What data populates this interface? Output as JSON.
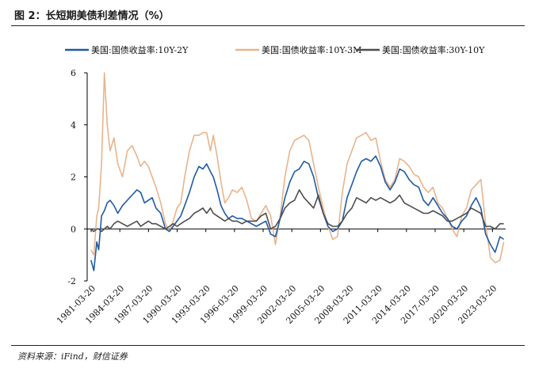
{
  "figure": {
    "title": "图 2：长短期美债利差情况（%）",
    "source": "资料来源：iFind，财信证券"
  },
  "chart_data": {
    "type": "line",
    "title": "",
    "xlabel": "",
    "ylabel": "",
    "ylim": [
      -2,
      6
    ],
    "yticks": [
      "-2",
      "0",
      "2",
      "4",
      "6"
    ],
    "xticks": [
      "1981-03-20",
      "1984-03-20",
      "1987-03-20",
      "1990-03-20",
      "1993-03-20",
      "1996-03-20",
      "1999-03-20",
      "2002-03-20",
      "2005-03-20",
      "2008-03-20",
      "2011-03-20",
      "2014-03-20",
      "2017-03-20",
      "2020-03-20",
      "2023-03-20"
    ],
    "xlim": [
      1980.8,
      2024.6
    ],
    "legend_position": "top",
    "grid": false,
    "series": [
      {
        "name": "美国:国债收益率:10Y-2Y",
        "color": "#1f5aa6",
        "x": [
          1981.2,
          1981.5,
          1981.8,
          1982.0,
          1982.3,
          1982.6,
          1982.9,
          1983.2,
          1983.6,
          1984.0,
          1984.5,
          1985.0,
          1985.5,
          1986.0,
          1986.4,
          1986.8,
          1987.2,
          1987.6,
          1988.0,
          1988.5,
          1989.0,
          1989.4,
          1989.8,
          1990.2,
          1990.6,
          1991.0,
          1991.5,
          1992.0,
          1992.5,
          1992.9,
          1993.3,
          1993.7,
          1994.0,
          1994.4,
          1994.8,
          1995.2,
          1995.6,
          1996.0,
          1996.5,
          1997.0,
          1997.5,
          1998.0,
          1998.5,
          1999.0,
          1999.5,
          2000.0,
          2000.5,
          2001.0,
          2001.5,
          2002.0,
          2002.5,
          2003.0,
          2003.5,
          2004.0,
          2004.5,
          2005.0,
          2005.5,
          2006.0,
          2006.5,
          2007.0,
          2007.5,
          2008.0,
          2008.5,
          2009.0,
          2009.5,
          2010.0,
          2010.5,
          2011.0,
          2011.5,
          2012.0,
          2012.5,
          2013.0,
          2013.5,
          2014.0,
          2014.5,
          2015.0,
          2015.5,
          2016.0,
          2016.5,
          2017.0,
          2017.5,
          2018.0,
          2018.5,
          2019.0,
          2019.5,
          2020.0,
          2020.5,
          2021.0,
          2021.5,
          2022.0,
          2022.5,
          2023.0,
          2023.5,
          2024.0,
          2024.4
        ],
        "y": [
          -1.2,
          -1.6,
          -0.5,
          -0.8,
          0.5,
          0.7,
          1.0,
          1.1,
          0.9,
          0.6,
          0.9,
          1.1,
          1.3,
          1.5,
          1.4,
          1.0,
          1.1,
          1.2,
          0.8,
          0.6,
          0.0,
          -0.1,
          0.1,
          0.3,
          0.5,
          0.9,
          1.4,
          2.0,
          2.4,
          2.3,
          2.5,
          2.2,
          2.0,
          1.5,
          0.9,
          0.6,
          0.4,
          0.5,
          0.4,
          0.4,
          0.3,
          0.2,
          0.1,
          0.2,
          0.3,
          -0.2,
          -0.3,
          0.4,
          1.2,
          1.8,
          2.2,
          2.3,
          2.6,
          2.5,
          2.0,
          1.2,
          0.6,
          0.1,
          -0.1,
          0.0,
          0.3,
          1.2,
          1.7,
          2.2,
          2.6,
          2.7,
          2.6,
          2.8,
          2.4,
          1.8,
          1.5,
          1.8,
          2.3,
          2.2,
          1.9,
          1.7,
          1.6,
          1.1,
          0.9,
          1.2,
          0.9,
          0.6,
          0.4,
          0.1,
          0.0,
          0.3,
          0.5,
          0.9,
          1.2,
          0.8,
          -0.2,
          -0.6,
          -0.9,
          -0.3,
          -0.4
        ]
      },
      {
        "name": "美国:国债收益率:10Y-3M",
        "color": "#e8b48c",
        "x": [
          1981.2,
          1981.5,
          1981.8,
          1982.0,
          1982.3,
          1982.6,
          1982.9,
          1983.2,
          1983.6,
          1984.0,
          1984.5,
          1985.0,
          1985.5,
          1986.0,
          1986.4,
          1986.8,
          1987.2,
          1987.6,
          1988.0,
          1988.5,
          1989.0,
          1989.4,
          1989.8,
          1990.2,
          1990.6,
          1991.0,
          1991.5,
          1992.0,
          1992.5,
          1992.9,
          1993.3,
          1993.7,
          1994.0,
          1994.4,
          1994.8,
          1995.2,
          1995.6,
          1996.0,
          1996.5,
          1997.0,
          1997.5,
          1998.0,
          1998.5,
          1999.0,
          1999.5,
          2000.0,
          2000.5,
          2001.0,
          2001.5,
          2002.0,
          2002.5,
          2003.0,
          2003.5,
          2004.0,
          2004.5,
          2005.0,
          2005.5,
          2006.0,
          2006.5,
          2007.0,
          2007.5,
          2008.0,
          2008.5,
          2009.0,
          2009.5,
          2010.0,
          2010.5,
          2011.0,
          2011.5,
          2012.0,
          2012.5,
          2013.0,
          2013.5,
          2014.0,
          2014.5,
          2015.0,
          2015.5,
          2016.0,
          2016.5,
          2017.0,
          2017.5,
          2018.0,
          2018.5,
          2019.0,
          2019.5,
          2020.0,
          2020.5,
          2021.0,
          2021.5,
          2022.0,
          2022.5,
          2023.0,
          2023.5,
          2024.0,
          2024.4
        ],
        "y": [
          -0.8,
          -1.0,
          0.5,
          0.8,
          2.5,
          6.0,
          4.0,
          3.0,
          3.5,
          2.5,
          2.0,
          3.0,
          3.2,
          2.8,
          2.4,
          2.6,
          2.4,
          2.0,
          1.6,
          1.0,
          0.2,
          -0.1,
          0.3,
          0.8,
          1.0,
          2.0,
          3.0,
          3.6,
          3.6,
          3.7,
          3.7,
          3.0,
          3.6,
          2.8,
          1.8,
          1.0,
          1.2,
          1.5,
          1.4,
          1.6,
          1.1,
          0.4,
          0.3,
          0.6,
          0.9,
          0.5,
          -0.6,
          0.5,
          2.0,
          3.0,
          3.4,
          3.5,
          3.6,
          3.4,
          2.5,
          1.6,
          0.8,
          0.1,
          -0.4,
          -0.3,
          1.4,
          2.5,
          3.0,
          3.5,
          3.6,
          3.7,
          3.4,
          3.5,
          2.6,
          1.9,
          1.6,
          1.9,
          2.7,
          2.6,
          2.4,
          2.1,
          2.0,
          1.6,
          1.4,
          1.6,
          1.0,
          0.8,
          0.4,
          0.0,
          -0.3,
          0.5,
          0.8,
          1.5,
          1.7,
          1.9,
          0.2,
          -1.1,
          -1.3,
          -1.2,
          -0.5
        ]
      },
      {
        "name": "美国:国债收益率:30Y-10Y",
        "color": "#4d4d4d",
        "x": [
          1981.2,
          1981.5,
          1981.8,
          1982.0,
          1982.3,
          1982.6,
          1982.9,
          1983.2,
          1983.6,
          1984.0,
          1984.5,
          1985.0,
          1985.5,
          1986.0,
          1986.4,
          1986.8,
          1987.2,
          1987.6,
          1988.0,
          1988.5,
          1989.0,
          1989.4,
          1989.8,
          1990.2,
          1990.6,
          1991.0,
          1991.5,
          1992.0,
          1992.5,
          1992.9,
          1993.3,
          1993.7,
          1994.0,
          1994.4,
          1994.8,
          1995.2,
          1995.6,
          1996.0,
          1996.5,
          1997.0,
          1997.5,
          1998.0,
          1998.5,
          1999.0,
          1999.5,
          2000.0,
          2000.5,
          2001.0,
          2001.5,
          2002.0,
          2002.5,
          2003.0,
          2003.5,
          2004.0,
          2004.5,
          2005.0,
          2005.5,
          2006.0,
          2006.5,
          2007.0,
          2007.5,
          2008.0,
          2008.5,
          2009.0,
          2009.5,
          2010.0,
          2010.5,
          2011.0,
          2011.5,
          2012.0,
          2012.5,
          2013.0,
          2013.5,
          2014.0,
          2014.5,
          2015.0,
          2015.5,
          2016.0,
          2016.5,
          2017.0,
          2017.5,
          2018.0,
          2018.5,
          2019.0,
          2019.5,
          2020.0,
          2020.5,
          2021.0,
          2021.5,
          2022.0,
          2022.5,
          2023.0,
          2023.5,
          2024.0,
          2024.4
        ],
        "y": [
          0.0,
          -0.1,
          0.0,
          0.0,
          -0.1,
          0.0,
          0.1,
          0.0,
          0.2,
          0.3,
          0.2,
          0.1,
          0.2,
          0.3,
          0.1,
          0.2,
          0.3,
          0.2,
          0.2,
          0.1,
          0.0,
          0.1,
          0.2,
          0.1,
          0.2,
          0.3,
          0.4,
          0.6,
          0.7,
          0.8,
          0.6,
          0.8,
          0.6,
          0.5,
          0.4,
          0.3,
          0.4,
          0.3,
          0.3,
          0.2,
          0.3,
          0.3,
          0.3,
          0.5,
          0.6,
          0.0,
          0.1,
          0.4,
          0.8,
          1.0,
          1.1,
          1.5,
          1.2,
          1.0,
          0.8,
          1.3,
          0.6,
          0.2,
          0.1,
          0.1,
          0.3,
          0.6,
          0.8,
          1.2,
          1.1,
          1.0,
          1.2,
          1.1,
          1.2,
          1.1,
          1.0,
          1.1,
          1.3,
          1.0,
          0.9,
          0.8,
          0.7,
          0.6,
          0.6,
          0.7,
          0.6,
          0.5,
          0.3,
          0.3,
          0.4,
          0.5,
          0.6,
          0.8,
          0.7,
          0.6,
          0.1,
          0.1,
          0.0,
          0.2,
          0.2
        ]
      }
    ]
  }
}
